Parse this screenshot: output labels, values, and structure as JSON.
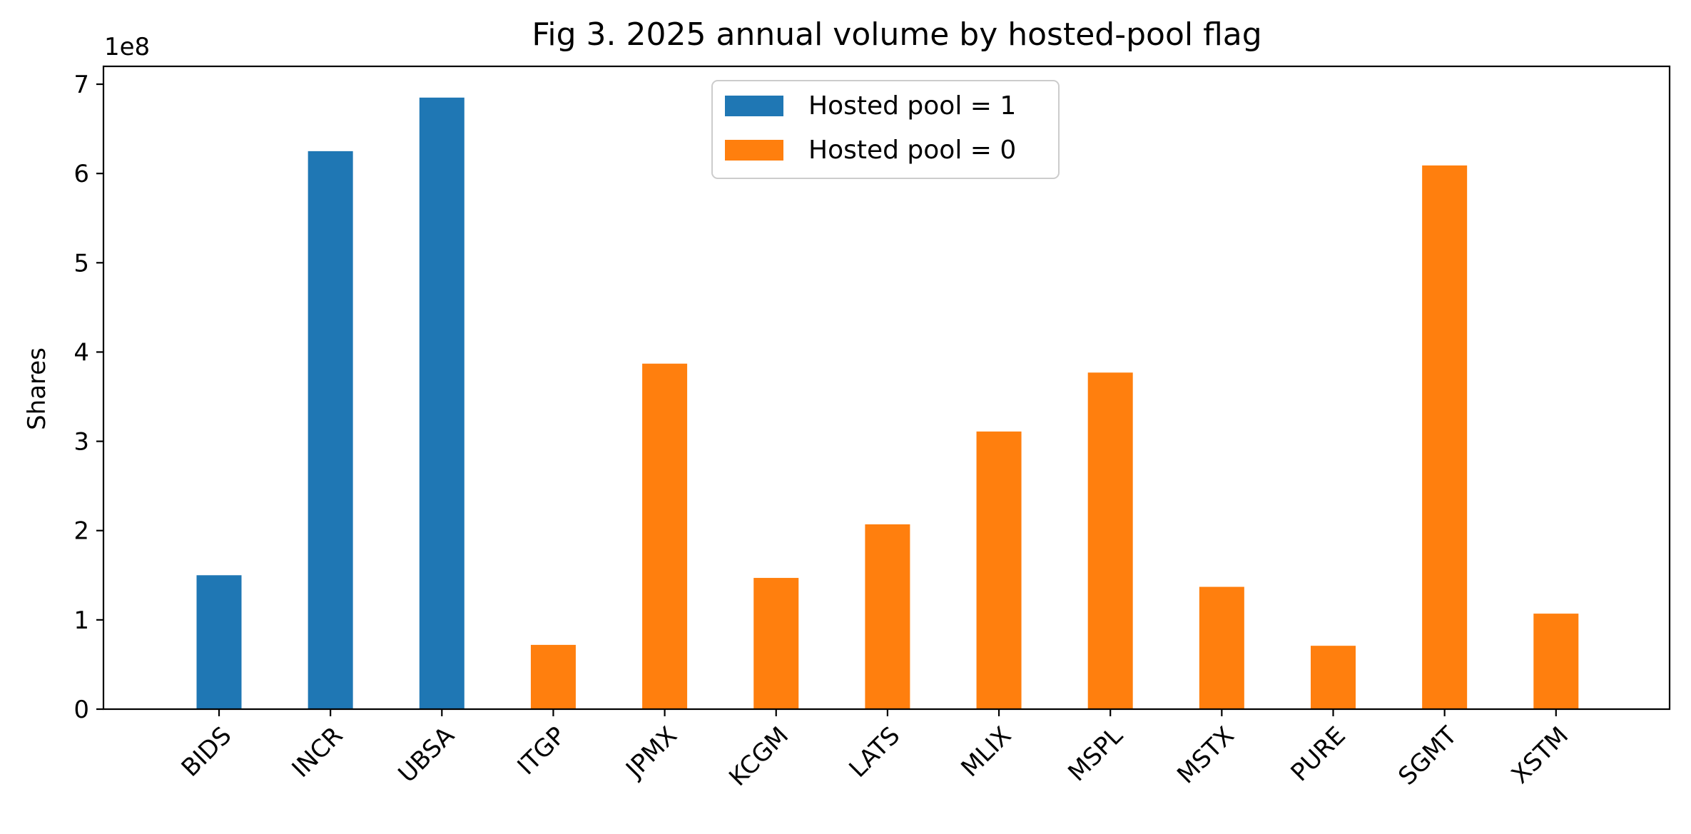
{
  "chart_data": {
    "type": "bar",
    "title": "Fig 3. 2025 annual volume by hosted-pool flag",
    "xlabel": "",
    "ylabel": "Shares",
    "y_offset_label": "1e8",
    "ylim": [
      0,
      720000000
    ],
    "yticks": [
      0,
      100000000,
      200000000,
      300000000,
      400000000,
      500000000,
      600000000,
      700000000
    ],
    "ytick_labels": [
      "0",
      "1",
      "2",
      "3",
      "4",
      "5",
      "6",
      "7"
    ],
    "categories": [
      "BIDS",
      "INCR",
      "UBSA",
      "ITGP",
      "JPMX",
      "KCGM",
      "LATS",
      "MLIX",
      "MSPL",
      "MSTX",
      "PURE",
      "SGMT",
      "XSTM"
    ],
    "grid": false,
    "legend_position": "upper center",
    "series": [
      {
        "name": "Hosted pool = 1",
        "color": "#1f77b4",
        "values": [
          150000000,
          625000000,
          685000000,
          null,
          null,
          null,
          null,
          null,
          null,
          null,
          null,
          null,
          null
        ]
      },
      {
        "name": "Hosted pool = 0",
        "color": "#ff7f0e",
        "values": [
          null,
          null,
          null,
          72000000,
          387000000,
          147000000,
          207000000,
          311000000,
          377000000,
          137000000,
          71000000,
          609000000,
          107000000
        ]
      }
    ]
  }
}
